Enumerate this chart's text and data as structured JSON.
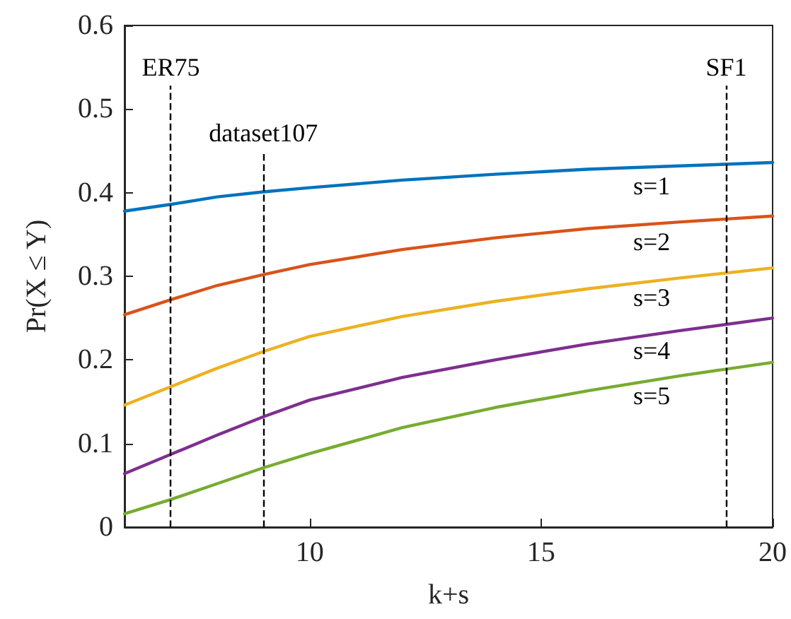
{
  "chart_data": {
    "type": "line",
    "xlabel": "k+s",
    "ylabel": "Pr(X ≤ Y)",
    "x": [
      6,
      7,
      8,
      9,
      10,
      12,
      14,
      16,
      18,
      20
    ],
    "series": [
      {
        "name": "s=1",
        "color": "#0072bd",
        "values": [
          0.378,
          0.386,
          0.395,
          0.401,
          0.406,
          0.415,
          0.422,
          0.428,
          0.432,
          0.436
        ]
      },
      {
        "name": "s=2",
        "color": "#d95319",
        "values": [
          0.254,
          0.272,
          0.289,
          0.302,
          0.314,
          0.332,
          0.346,
          0.357,
          0.365,
          0.372
        ]
      },
      {
        "name": "s=3",
        "color": "#edb120",
        "values": [
          0.146,
          0.168,
          0.19,
          0.21,
          0.228,
          0.252,
          0.27,
          0.285,
          0.298,
          0.31
        ]
      },
      {
        "name": "s=4",
        "color": "#7e2f8e",
        "values": [
          0.064,
          0.087,
          0.11,
          0.132,
          0.152,
          0.179,
          0.2,
          0.219,
          0.235,
          0.25
        ]
      },
      {
        "name": "s=5",
        "color": "#77ac30",
        "values": [
          0.016,
          0.033,
          0.052,
          0.071,
          0.088,
          0.119,
          0.143,
          0.163,
          0.181,
          0.197
        ]
      }
    ],
    "xlim": [
      6,
      20
    ],
    "xticks": [
      10,
      15,
      20
    ],
    "ylim": [
      0,
      0.6
    ],
    "yticks": [
      0,
      0.1,
      0.2,
      0.3,
      0.4,
      0.5,
      0.6
    ],
    "ref_lines": [
      {
        "axis": "x",
        "value": 7,
        "label": "ER75",
        "line_style": "dashed",
        "color": "#000000"
      },
      {
        "axis": "x",
        "value": 9,
        "label": "dataset107",
        "line_style": "dashed",
        "color": "#000000"
      },
      {
        "axis": "x",
        "value": 19,
        "label": "SF1",
        "line_style": "dashed",
        "color": "#000000"
      }
    ],
    "grid": false,
    "legend": false,
    "marker": "none",
    "line_style": "solid"
  }
}
